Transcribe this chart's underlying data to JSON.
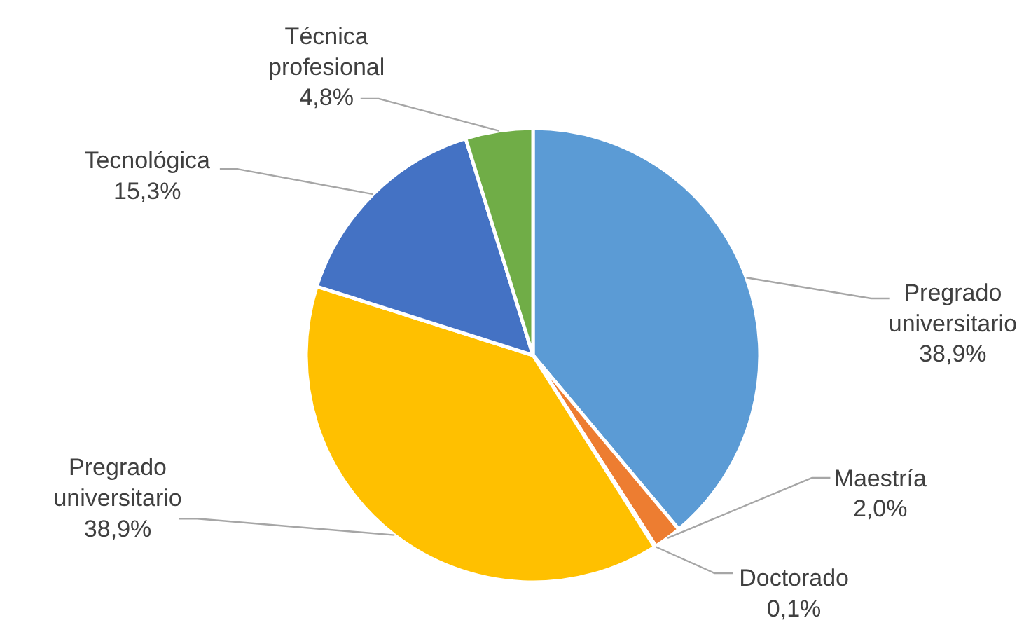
{
  "chart_data": {
    "type": "pie",
    "categories": [
      "Pregrado universitario",
      "Maestría",
      "Doctorado",
      "Pregrado universitario",
      "Tecnológica",
      "Técnica profesional"
    ],
    "values": [
      38.9,
      2.0,
      0.1,
      38.9,
      15.3,
      4.8
    ],
    "colors": [
      "#5b9bd5",
      "#ed7d31",
      "#a5a5a5",
      "#ffc000",
      "#4472c4",
      "#70ad47"
    ],
    "value_labels": [
      "38,9%",
      "2,0%",
      "0,1%",
      "38,9%",
      "15,3%",
      "4,8%"
    ]
  }
}
